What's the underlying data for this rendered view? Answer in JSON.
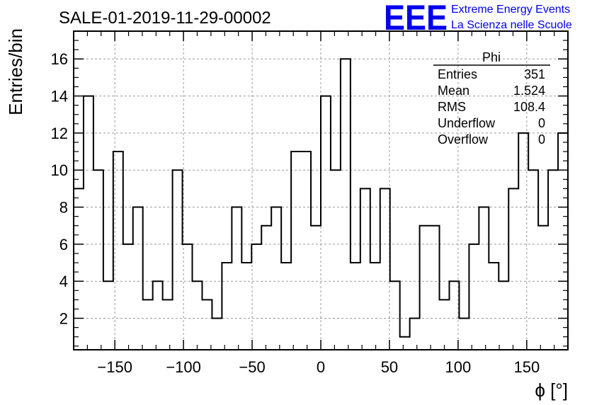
{
  "chart_data": {
    "type": "histogram",
    "title": "SALE-01-2019-11-29-00002",
    "xlabel": "ϕ [°]",
    "ylabel": "Entries/bin",
    "xlim": [
      -180,
      180
    ],
    "ylim": [
      0.3,
      17.5
    ],
    "bin_width": 7.2,
    "x_ticks": [
      -150,
      -100,
      -50,
      0,
      50,
      100,
      150
    ],
    "x_tick_labels": [
      "−150",
      "−100",
      "−50",
      "0",
      "50",
      "100",
      "150"
    ],
    "y_ticks": [
      2,
      4,
      6,
      8,
      10,
      12,
      14,
      16
    ],
    "y_tick_labels": [
      "2",
      "4",
      "6",
      "8",
      "10",
      "12",
      "14",
      "16"
    ],
    "grid": true,
    "values": [
      9,
      14,
      10,
      4,
      11,
      6,
      8,
      3,
      4,
      3,
      10,
      6,
      4,
      3,
      2,
      5,
      8,
      5,
      6,
      7,
      8,
      5,
      11,
      11,
      7,
      14,
      10,
      16,
      5,
      9,
      5,
      9,
      4,
      1,
      2,
      7,
      7,
      3,
      4,
      2,
      6,
      8,
      5,
      4,
      9,
      12,
      10,
      7,
      10,
      12
    ],
    "stats_box": {
      "title": "Phi",
      "rows": [
        {
          "label": "Entries",
          "value": "351"
        },
        {
          "label": "Mean",
          "value": "1.524"
        },
        {
          "label": "RMS",
          "value": "108.4"
        },
        {
          "label": "Underflow",
          "value": "0"
        },
        {
          "label": "Overflow",
          "value": "0"
        }
      ]
    }
  },
  "logo": {
    "mark": "EEE",
    "line1": "Extreme Energy Events",
    "line2": "La Scienza nelle Scuole",
    "color": "#0000ee"
  },
  "colors": {
    "line": "#000000",
    "grid": "#999999",
    "logo": "#0000ee"
  }
}
